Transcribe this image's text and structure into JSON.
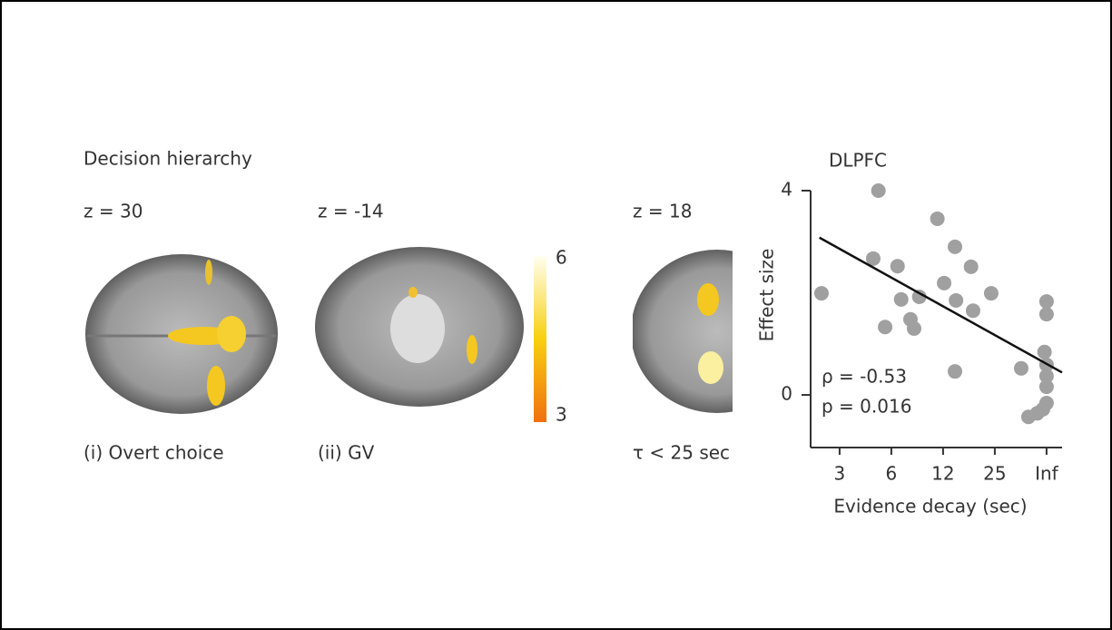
{
  "panel_title": "Decision hierarchy",
  "slices": [
    {
      "coord": "z = 30",
      "caption": "(i) Overt choice"
    },
    {
      "coord": "z = -14",
      "caption": "(ii) GV"
    },
    {
      "coord": "z = 18",
      "caption": "τ < 25 sec"
    }
  ],
  "colorbar": {
    "lim": [
      3,
      6
    ],
    "ticks": [
      3,
      6
    ]
  },
  "chart_data": {
    "type": "scatter",
    "title": "DLPFC",
    "x_label": "Evidence decay (sec)",
    "y_label": "Effect size",
    "annotations": [
      "ρ = -0.53",
      "p = 0.016"
    ],
    "color": "#a0a0a0",
    "x": [
      0.65,
      1.75,
      1.65,
      2.12,
      1.88,
      2.19,
      2.37,
      2.44,
      2.54,
      2.89,
      3.02,
      3.23,
      3.25,
      3.54,
      3.58,
      3.23,
      3.93,
      4.51,
      5.0,
      5.0,
      4.96,
      5.0,
      5.0,
      5.0,
      5.0,
      4.93,
      4.82,
      4.65
    ],
    "y": [
      1.99,
      4.0,
      2.67,
      2.52,
      1.33,
      1.87,
      1.48,
      1.3,
      1.92,
      3.45,
      2.19,
      2.9,
      1.85,
      2.51,
      1.65,
      0.46,
      1.99,
      0.52,
      1.83,
      1.58,
      0.84,
      0.59,
      0.37,
      0.16,
      -0.16,
      -0.28,
      -0.36,
      -0.43
    ],
    "fit_line": {
      "x": [
        0.61,
        5.3
      ],
      "y": [
        3.08,
        0.44
      ]
    },
    "xlim": [
      0.44,
      5.3
    ],
    "ylim": [
      -1.03,
      4.0
    ],
    "xticks": [
      {
        "value": 1,
        "label": "3"
      },
      {
        "value": 2,
        "label": "6"
      },
      {
        "value": 3,
        "label": "12"
      },
      {
        "value": 4,
        "label": "25"
      },
      {
        "value": 5,
        "label": "Inf"
      }
    ],
    "yticks": [
      0,
      4
    ]
  }
}
